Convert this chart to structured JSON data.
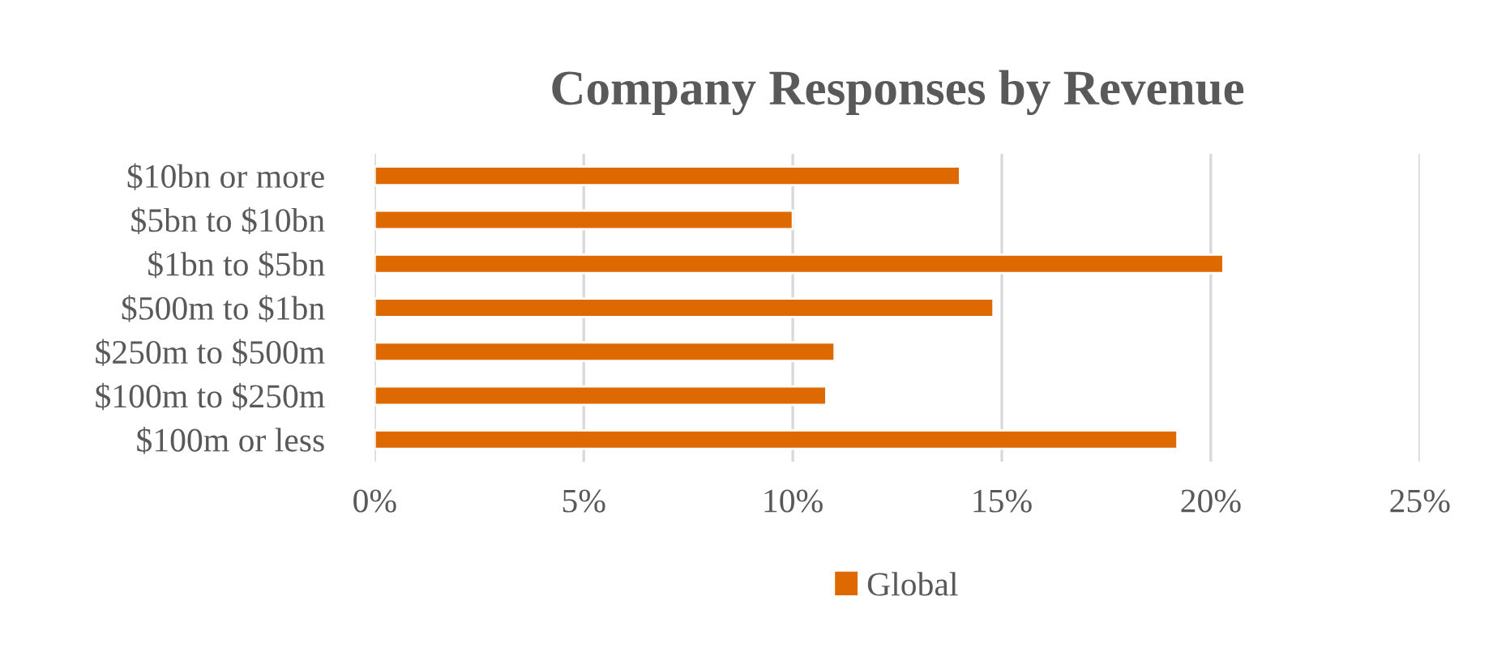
{
  "chart_data": {
    "type": "bar",
    "orientation": "horizontal",
    "title": "Company Responses by Revenue",
    "categories": [
      "$10bn or more",
      "$5bn to $10bn",
      "$1bn to $5bn",
      "$500m to $1bn",
      "$250m to $500m",
      "$100m to $250m",
      "$100m or less"
    ],
    "series": [
      {
        "name": "Global",
        "color": "#dd6900",
        "values": [
          14.0,
          10.0,
          20.3,
          14.8,
          11.0,
          10.8,
          19.2
        ]
      }
    ],
    "xlim": [
      0,
      25
    ],
    "xticks": [
      {
        "value": 0,
        "label": "0%"
      },
      {
        "value": 5,
        "label": "5%"
      },
      {
        "value": 10,
        "label": "10%"
      },
      {
        "value": 15,
        "label": "15%"
      },
      {
        "value": 20,
        "label": "20%"
      },
      {
        "value": 25,
        "label": "25%"
      }
    ],
    "grid": "x",
    "legend": "bottom"
  }
}
